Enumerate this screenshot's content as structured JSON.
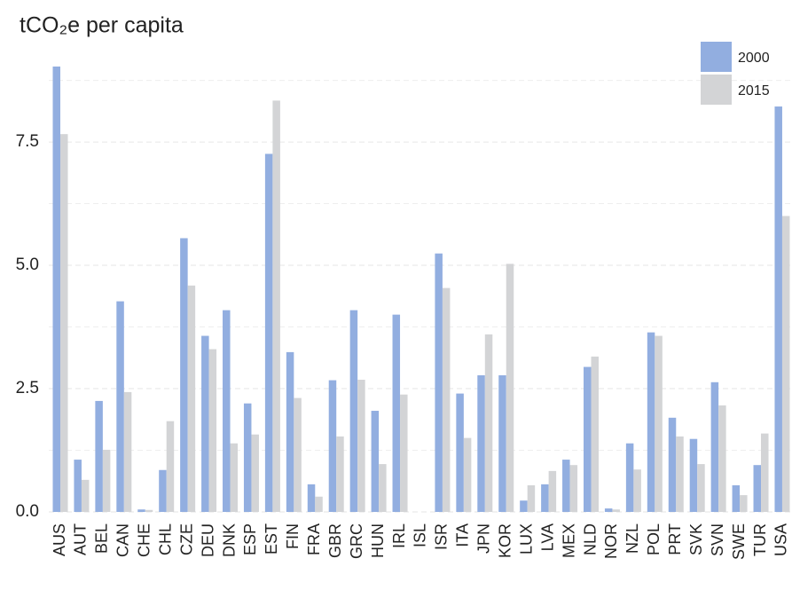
{
  "chart_data": {
    "type": "bar",
    "title": "tCO₂e per capita",
    "categories": [
      "AUS",
      "AUT",
      "BEL",
      "CAN",
      "CHE",
      "CHL",
      "CZE",
      "DEU",
      "DNK",
      "ESP",
      "EST",
      "FIN",
      "FRA",
      "GBR",
      "GRC",
      "HUN",
      "IRL",
      "ISL",
      "ISR",
      "ITA",
      "JPN",
      "KOR",
      "LUX",
      "LVA",
      "MEX",
      "NLD",
      "NOR",
      "NZL",
      "POL",
      "PRT",
      "SVK",
      "SVN",
      "SWE",
      "TUR",
      "USA"
    ],
    "series": [
      {
        "name": "2000",
        "color": "#92aee0",
        "values": [
          9.03,
          1.06,
          2.25,
          4.27,
          0.05,
          0.85,
          5.55,
          3.57,
          4.09,
          2.2,
          7.26,
          3.24,
          0.56,
          2.67,
          4.09,
          2.05,
          4.0,
          0,
          5.24,
          2.4,
          2.77,
          2.77,
          0.23,
          0.56,
          1.06,
          2.94,
          0.07,
          1.39,
          3.64,
          1.91,
          1.48,
          2.63,
          0.54,
          0.95,
          8.22
        ]
      },
      {
        "name": "2015",
        "color": "#d3d4d6",
        "values": [
          7.66,
          0.65,
          1.26,
          2.43,
          0.04,
          1.84,
          4.59,
          3.3,
          1.39,
          1.57,
          8.34,
          2.31,
          0.31,
          1.53,
          2.68,
          0.97,
          2.38,
          0,
          4.54,
          1.5,
          3.6,
          5.03,
          0.54,
          0.83,
          0.95,
          3.15,
          0.05,
          0.86,
          3.57,
          1.53,
          0.97,
          2.16,
          0.34,
          1.59,
          6.0
        ]
      }
    ],
    "ylim": [
      0,
      9.3
    ],
    "yticks": [
      {
        "value": 0,
        "label": "0.0"
      },
      2.5,
      {
        "value": 5,
        "label": "5.0"
      },
      7.5
    ],
    "yminor": [
      1.25,
      3.75,
      6.25,
      8.75
    ],
    "grid": true,
    "legend": "top-right"
  }
}
